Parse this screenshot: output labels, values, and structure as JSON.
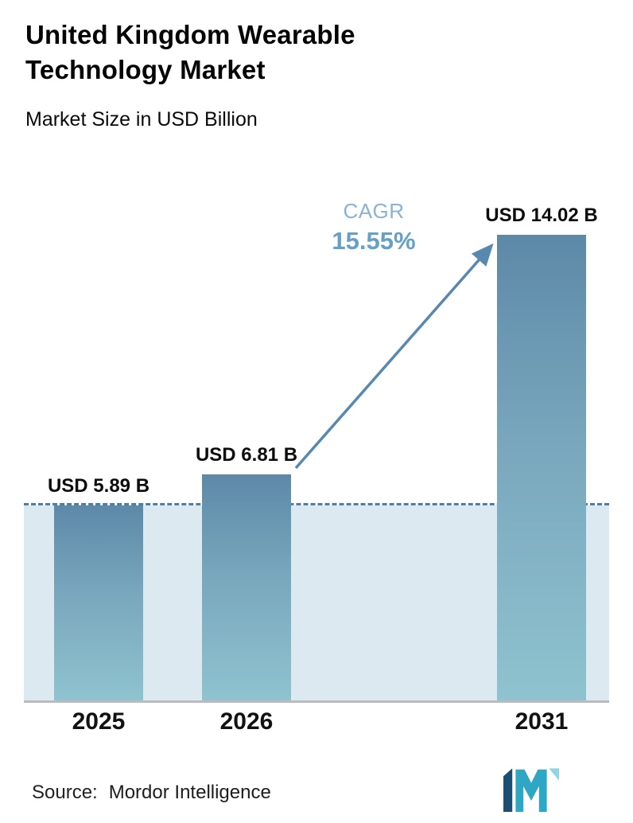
{
  "header": {
    "title": "United Kingdom Wearable Technology Market",
    "subtitle": "Market Size in USD Billion"
  },
  "chart_data": {
    "type": "bar",
    "title": "United Kingdom Wearable Technology Market",
    "subtitle": "Market Size in USD Billion",
    "unit": "USD Billion",
    "categories": [
      "2025",
      "2026",
      "2031"
    ],
    "values": [
      5.89,
      6.81,
      14.02
    ],
    "bar_labels": [
      "USD 5.89 B",
      "USD 6.81 B",
      "USD 14.02 B"
    ],
    "cagr": {
      "label": "CAGR",
      "value": "15.55%"
    },
    "baseline_value": 5.89,
    "ylim": [
      0,
      15.5
    ],
    "grid": false,
    "legend": "none",
    "annotations": [
      "dashed reference line at 2025 value",
      "growth arrow from 2026 bar to 2031 bar"
    ]
  },
  "footer": {
    "source_label": "Source:",
    "source_value": "Mordor Intelligence"
  },
  "icons": {
    "logo": "mordor-intelligence-logo"
  },
  "colors": {
    "bar_gradient_top": "#5d89a8",
    "bar_gradient_bottom": "#8fc3cf",
    "shade_area": "#dde9f1",
    "dashed_line": "#4a80a8",
    "cagr_label": "#8ab3d3",
    "cagr_value": "#65a0c5",
    "arrow": "#5688b0",
    "axis_line": "#b8bcbe",
    "text": "#111111",
    "logo_dark": "#1b4f72",
    "logo_teal": "#2ea6c4",
    "logo_light": "#8ed6e6"
  }
}
